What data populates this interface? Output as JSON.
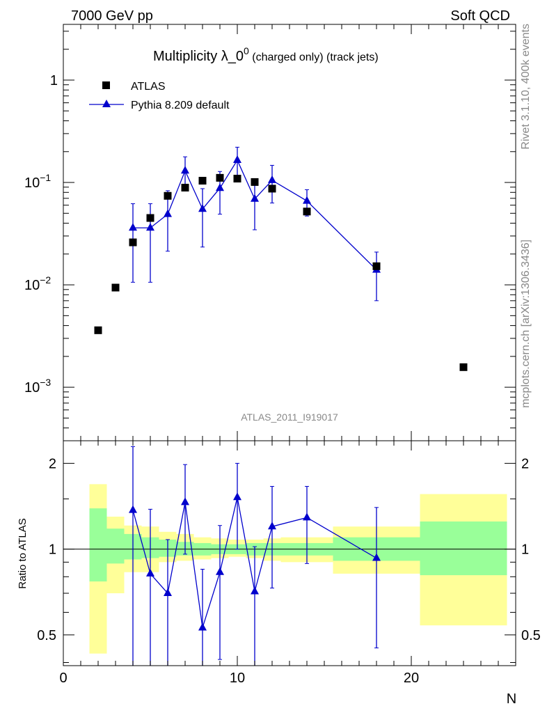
{
  "header": {
    "left": "7000 GeV pp",
    "right": "Soft QCD"
  },
  "title": {
    "main": "Multiplicity λ_0",
    "superscript": "0",
    "suffix": " (charged only) (track jets)"
  },
  "side_labels": {
    "rivet": "Rivet 3.1.10,  400k events",
    "mcplots": "mcplots.cern.ch [arXiv:1306.3436]"
  },
  "watermark": "ATLAS_2011_I919017",
  "legend": {
    "data_label": "ATLAS",
    "mc_label": "Pythia 8.209 default"
  },
  "colors": {
    "data": "#000000",
    "mc": "#0000cc",
    "band_inner": "#99ff99",
    "band_outer": "#ffff99"
  },
  "chart_data": {
    "type": "scatter",
    "xlabel": "N",
    "ylabel_ratio": "Ratio to ATLAS",
    "xlim": [
      0,
      26
    ],
    "x_ticks": [
      0,
      10,
      20
    ],
    "main": {
      "yscale": "log",
      "ylim": [
        0.0003,
        3.5
      ],
      "y_ticks": [
        {
          "value": 1,
          "label": "1"
        },
        {
          "value": 0.1,
          "label": "10",
          "exp": "−1"
        },
        {
          "value": 0.01,
          "label": "10",
          "exp": "−2"
        },
        {
          "value": 0.001,
          "label": "10",
          "exp": "−3"
        }
      ],
      "series": [
        {
          "name": "ATLAS",
          "style": "square-markers",
          "points": [
            {
              "x": 2,
              "y": 0.0036
            },
            {
              "x": 3,
              "y": 0.0094
            },
            {
              "x": 4,
              "y": 0.026
            },
            {
              "x": 5,
              "y": 0.045
            },
            {
              "x": 6,
              "y": 0.074
            },
            {
              "x": 7,
              "y": 0.089
            },
            {
              "x": 8,
              "y": 0.104
            },
            {
              "x": 9,
              "y": 0.111
            },
            {
              "x": 10,
              "y": 0.109
            },
            {
              "x": 11,
              "y": 0.101
            },
            {
              "x": 12,
              "y": 0.087
            },
            {
              "x": 14,
              "y": 0.052
            },
            {
              "x": 18,
              "y": 0.0152
            },
            {
              "x": 23,
              "y": 0.00157
            }
          ]
        },
        {
          "name": "Pythia 8.209 default",
          "style": "line-triangles",
          "points": [
            {
              "x": 4,
              "y": 0.036,
              "lo": 0.0106,
              "hi": 0.062
            },
            {
              "x": 5,
              "y": 0.036,
              "lo": 0.0106,
              "hi": 0.062
            },
            {
              "x": 6,
              "y": 0.049,
              "lo": 0.0213,
              "hi": 0.083
            },
            {
              "x": 7,
              "y": 0.13,
              "lo": 0.087,
              "hi": 0.178
            },
            {
              "x": 8,
              "y": 0.055,
              "lo": 0.0234,
              "hi": 0.087
            },
            {
              "x": 9,
              "y": 0.088,
              "lo": 0.049,
              "hi": 0.128
            },
            {
              "x": 10,
              "y": 0.165,
              "lo": 0.111,
              "hi": 0.221
            },
            {
              "x": 11,
              "y": 0.069,
              "lo": 0.0345,
              "hi": 0.103
            },
            {
              "x": 12,
              "y": 0.105,
              "lo": 0.063,
              "hi": 0.147
            },
            {
              "x": 14,
              "y": 0.066,
              "lo": 0.047,
              "hi": 0.085
            },
            {
              "x": 18,
              "y": 0.014,
              "lo": 0.007,
              "hi": 0.0209
            }
          ]
        }
      ]
    },
    "ratio": {
      "yscale": "log",
      "ylim": [
        0.39,
        2.4
      ],
      "y_ticks": [
        {
          "value": 0.5,
          "label": "0.5"
        },
        {
          "value": 1,
          "label": "1"
        },
        {
          "value": 2,
          "label": "2"
        }
      ],
      "bands": [
        {
          "x0": 1.5,
          "x1": 2.5,
          "inner": [
            0.77,
            1.39
          ],
          "outer": [
            0.43,
            1.69
          ]
        },
        {
          "x0": 2.5,
          "x1": 3.5,
          "inner": [
            0.89,
            1.18
          ],
          "outer": [
            0.7,
            1.3
          ]
        },
        {
          "x0": 3.5,
          "x1": 4.5,
          "inner": [
            0.92,
            1.13
          ],
          "outer": [
            0.83,
            1.21
          ]
        },
        {
          "x0": 4.5,
          "x1": 5.5,
          "inner": [
            0.93,
            1.1
          ],
          "outer": [
            0.83,
            1.2
          ]
        },
        {
          "x0": 5.5,
          "x1": 6.5,
          "inner": [
            0.94,
            1.08
          ],
          "outer": [
            0.9,
            1.15
          ]
        },
        {
          "x0": 6.5,
          "x1": 7.5,
          "inner": [
            0.95,
            1.06
          ],
          "outer": [
            0.91,
            1.13
          ]
        },
        {
          "x0": 7.5,
          "x1": 8.5,
          "inner": [
            0.95,
            1.05
          ],
          "outer": [
            0.92,
            1.1
          ]
        },
        {
          "x0": 8.5,
          "x1": 9.5,
          "inner": [
            0.96,
            1.04
          ],
          "outer": [
            0.93,
            1.09
          ]
        },
        {
          "x0": 9.5,
          "x1": 10.5,
          "inner": [
            0.96,
            1.04
          ],
          "outer": [
            0.94,
            1.08
          ]
        },
        {
          "x0": 10.5,
          "x1": 11.5,
          "inner": [
            0.95,
            1.05
          ],
          "outer": [
            0.93,
            1.08
          ]
        },
        {
          "x0": 11.5,
          "x1": 12.5,
          "inner": [
            0.95,
            1.05
          ],
          "outer": [
            0.91,
            1.09
          ]
        },
        {
          "x0": 12.5,
          "x1": 15.5,
          "inner": [
            0.95,
            1.05
          ],
          "outer": [
            0.9,
            1.1
          ]
        },
        {
          "x0": 15.5,
          "x1": 20.5,
          "inner": [
            0.91,
            1.1
          ],
          "outer": [
            0.82,
            1.2
          ]
        },
        {
          "x0": 20.5,
          "x1": 25.5,
          "inner": [
            0.81,
            1.25
          ],
          "outer": [
            0.54,
            1.56
          ]
        }
      ],
      "series": [
        {
          "name": "Pythia 8.209 default",
          "points": [
            {
              "x": 4,
              "y": 1.37,
              "lo": 0.39,
              "hi": 2.29
            },
            {
              "x": 5,
              "y": 0.82,
              "lo": 0.39,
              "hi": 1.38
            },
            {
              "x": 6,
              "y": 0.7,
              "lo": 0.39,
              "hi": 1.08
            },
            {
              "x": 7,
              "y": 1.46,
              "lo": 0.96,
              "hi": 1.98
            },
            {
              "x": 8,
              "y": 0.53,
              "lo": 0.39,
              "hi": 0.85
            },
            {
              "x": 9,
              "y": 0.83,
              "lo": 0.41,
              "hi": 1.21
            },
            {
              "x": 10,
              "y": 1.52,
              "lo": 1.0,
              "hi": 2.0
            },
            {
              "x": 11,
              "y": 0.71,
              "lo": 0.39,
              "hi": 1.02
            },
            {
              "x": 12,
              "y": 1.2,
              "lo": 0.73,
              "hi": 1.66
            },
            {
              "x": 14,
              "y": 1.29,
              "lo": 0.89,
              "hi": 1.66
            },
            {
              "x": 18,
              "y": 0.93,
              "lo": 0.45,
              "hi": 1.4
            }
          ]
        }
      ]
    }
  }
}
